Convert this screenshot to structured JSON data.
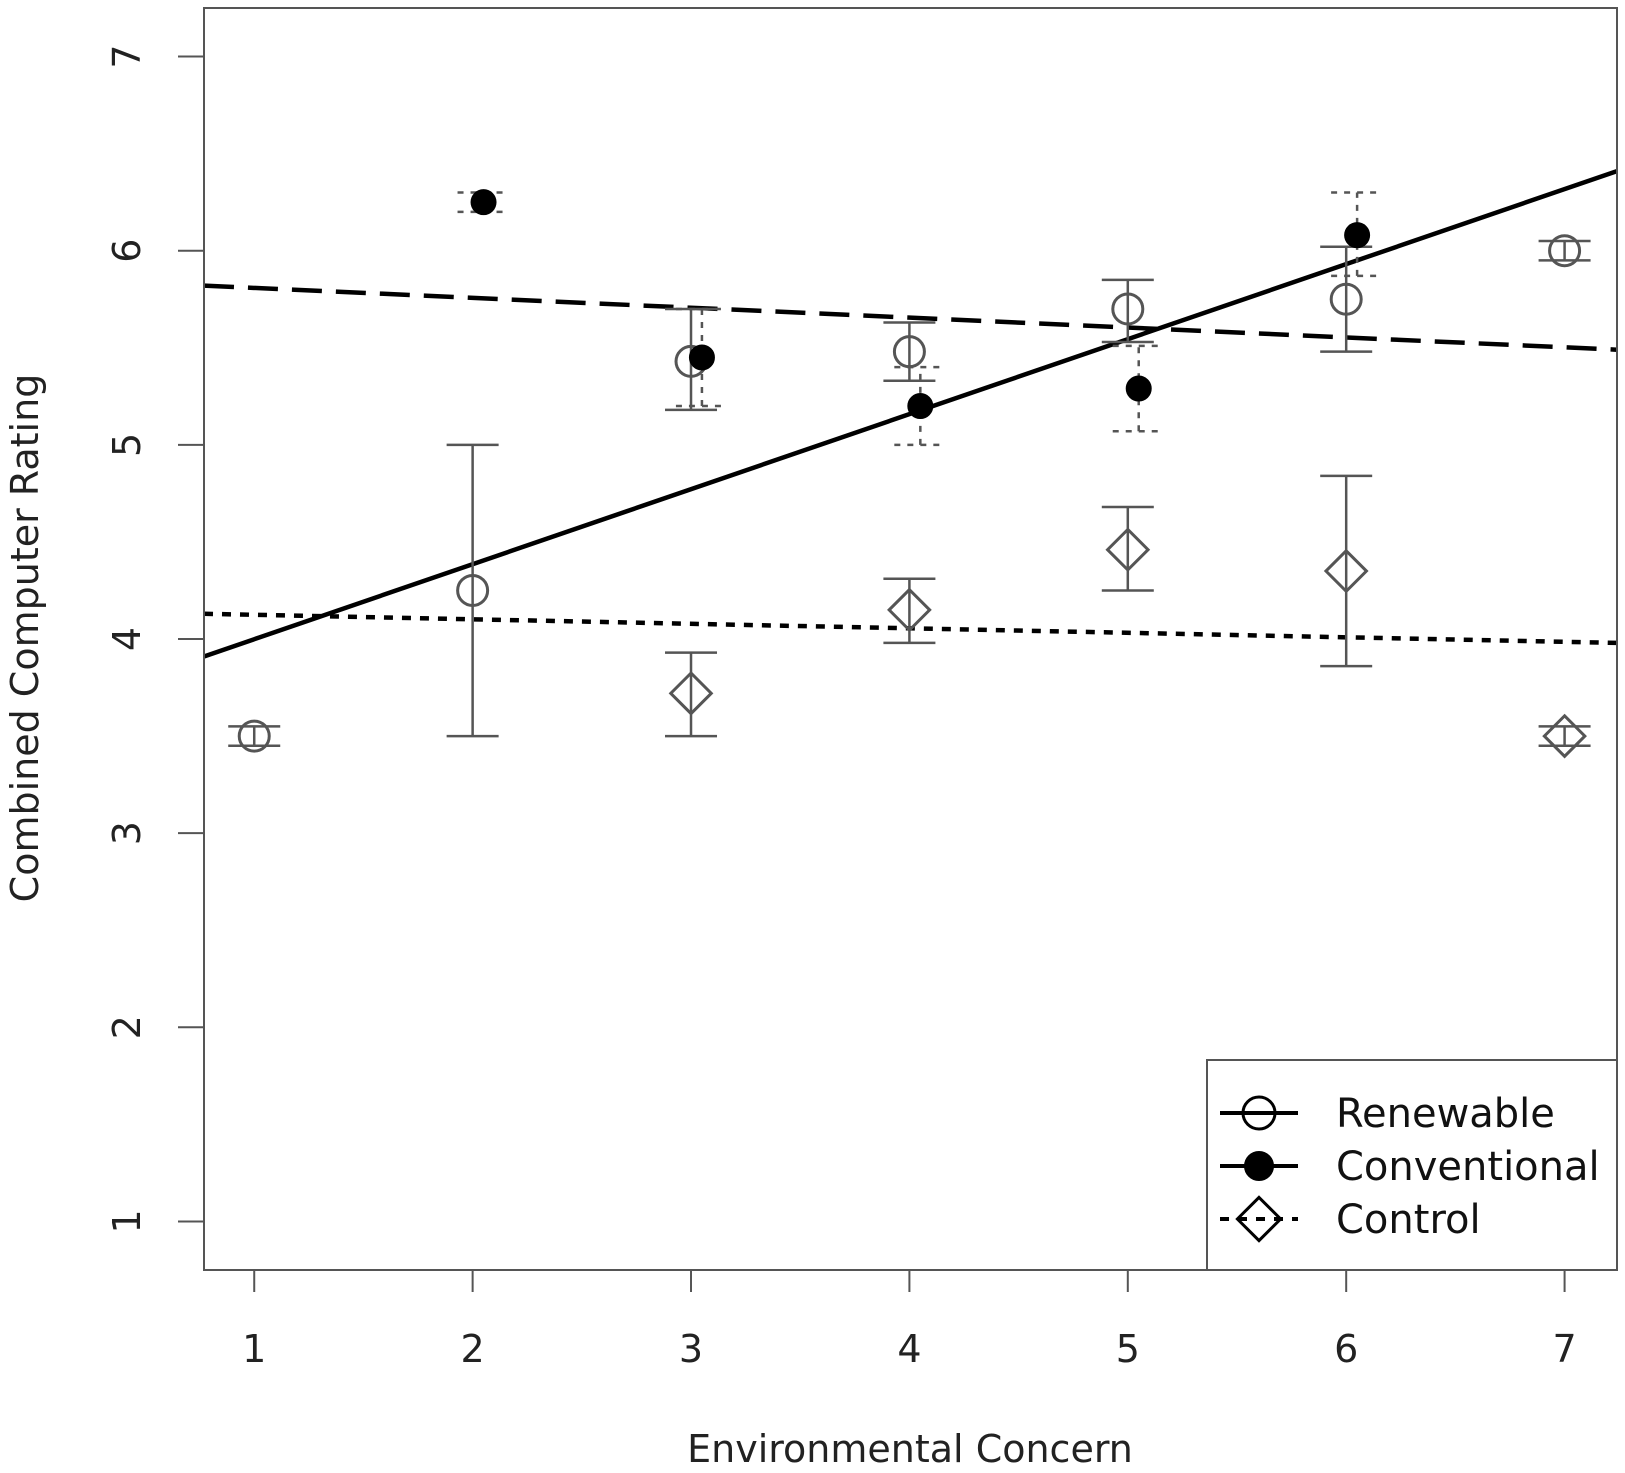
{
  "chart_data": {
    "type": "scatter",
    "xlabel": "Environmental Concern",
    "ylabel": "Combined Computer Rating",
    "xlim": [
      0.77,
      7.24
    ],
    "ylim": [
      0.75,
      7.25
    ],
    "x_ticks": [
      "1",
      "2",
      "3",
      "4",
      "5",
      "6",
      "7"
    ],
    "y_ticks": [
      "1",
      "2",
      "3",
      "4",
      "5",
      "6",
      "7"
    ],
    "grid": false,
    "legend_position": "bottom-right",
    "series": [
      {
        "name": "Renewable",
        "marker": "open-circle",
        "fit_line": "solid",
        "color": "#555555",
        "points": [
          {
            "x": 1,
            "y": 3.5,
            "lo": 3.45,
            "hi": 3.55
          },
          {
            "x": 2,
            "y": 4.25,
            "lo": 3.5,
            "hi": 5.0
          },
          {
            "x": 3,
            "y": 5.43,
            "lo": 5.18,
            "hi": 5.7
          },
          {
            "x": 4,
            "y": 5.48,
            "lo": 5.33,
            "hi": 5.63
          },
          {
            "x": 5,
            "y": 5.7,
            "lo": 5.53,
            "hi": 5.85
          },
          {
            "x": 6,
            "y": 5.75,
            "lo": 5.48,
            "hi": 6.02
          },
          {
            "x": 7,
            "y": 6.0,
            "lo": 5.95,
            "hi": 6.05
          }
        ],
        "fit": {
          "x": [
            0.77,
            7.24
          ],
          "y": [
            3.91,
            6.41
          ]
        }
      },
      {
        "name": "Conventional",
        "marker": "filled-circle",
        "fit_line": "dashed",
        "color": "#000000",
        "points": [
          {
            "x": 2.05,
            "y": 6.25,
            "lo": 6.2,
            "hi": 6.3
          },
          {
            "x": 3.05,
            "y": 5.45,
            "lo": 5.2,
            "hi": 5.7
          },
          {
            "x": 4.05,
            "y": 5.2,
            "lo": 5.0,
            "hi": 5.4
          },
          {
            "x": 5.05,
            "y": 5.29,
            "lo": 5.07,
            "hi": 5.51
          },
          {
            "x": 6.05,
            "y": 6.08,
            "lo": 5.87,
            "hi": 6.3
          }
        ],
        "fit": {
          "x": [
            0.77,
            7.24
          ],
          "y": [
            5.82,
            5.49
          ]
        }
      },
      {
        "name": "Control",
        "marker": "open-diamond",
        "fit_line": "dotted",
        "color": "#555555",
        "points": [
          {
            "x": 3,
            "y": 3.72,
            "lo": 3.5,
            "hi": 3.93
          },
          {
            "x": 4,
            "y": 4.15,
            "lo": 3.98,
            "hi": 4.31
          },
          {
            "x": 5,
            "y": 4.46,
            "lo": 4.25,
            "hi": 4.68
          },
          {
            "x": 6,
            "y": 4.35,
            "lo": 3.86,
            "hi": 4.84
          },
          {
            "x": 7,
            "y": 3.5,
            "lo": 3.45,
            "hi": 3.55
          }
        ],
        "fit": {
          "x": [
            0.77,
            7.24
          ],
          "y": [
            4.13,
            3.98
          ]
        }
      }
    ]
  }
}
